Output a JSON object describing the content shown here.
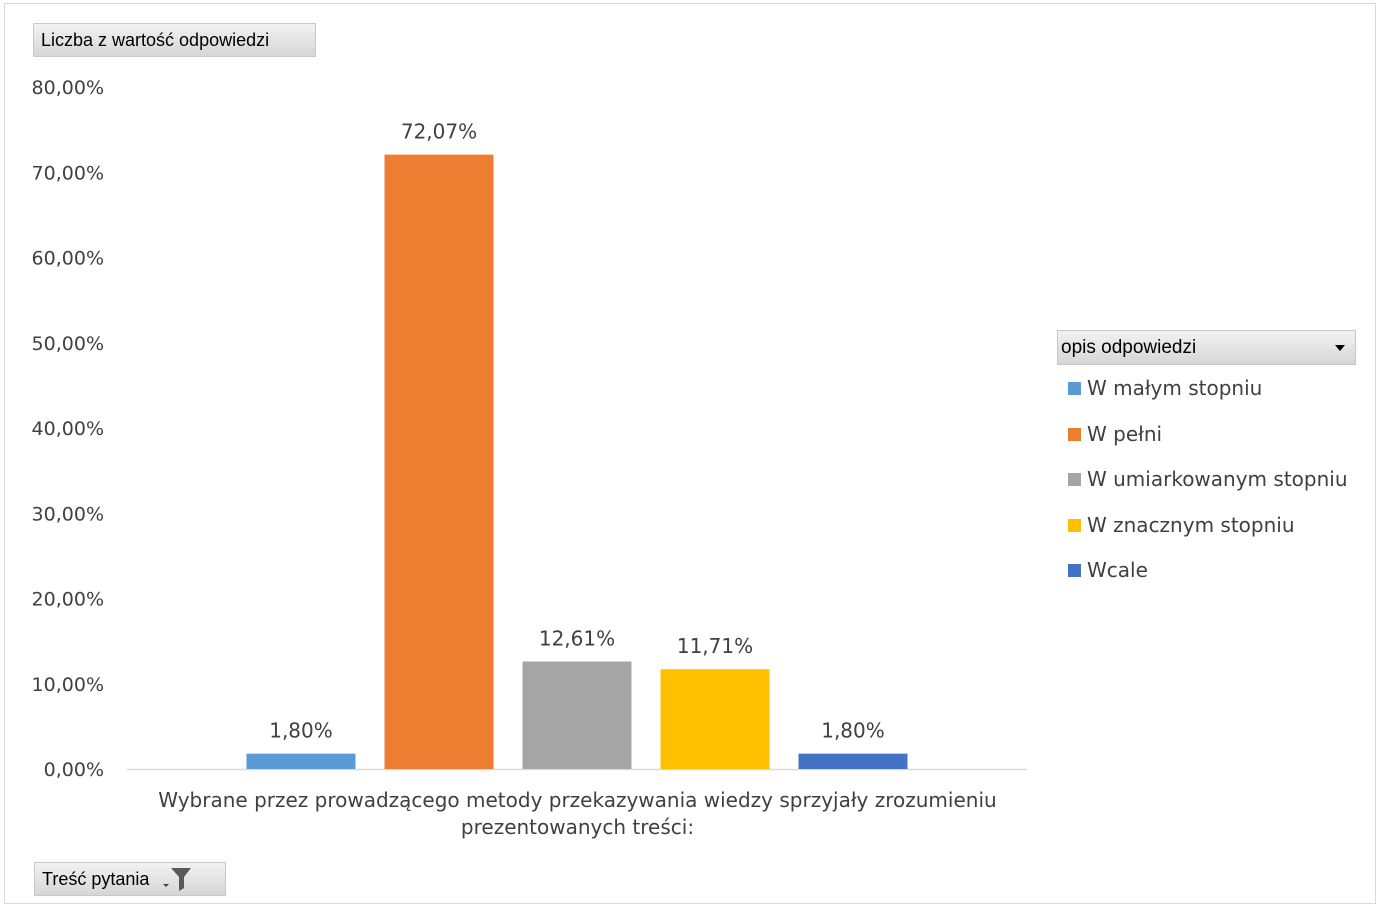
{
  "pivot": {
    "value_field_label": "Liczba z wartość odpowiedzi",
    "category_field_label": "Treść pytania",
    "legend_field_label": "opis odpowiedzi"
  },
  "chart_data": {
    "type": "bar",
    "categories": [
      "Wybrane przez prowadzącego metody przekazywania wiedzy sprzyjały zrozumieniu prezentowanych treści:"
    ],
    "series": [
      {
        "name": "W małym stopniu",
        "values": [
          1.8
        ],
        "label": "1,80%",
        "color": "#5b9bd5"
      },
      {
        "name": "W pełni",
        "values": [
          72.07
        ],
        "label": "72,07%",
        "color": "#ed7d31"
      },
      {
        "name": "W umiarkowanym stopniu",
        "values": [
          12.61
        ],
        "label": "12,61%",
        "color": "#a5a5a5"
      },
      {
        "name": "W znacznym stopniu",
        "values": [
          11.71
        ],
        "label": "11,71%",
        "color": "#ffc000"
      },
      {
        "name": "Wcale",
        "values": [
          1.8
        ],
        "label": "1,80%",
        "color": "#4472c4"
      }
    ],
    "ylim": [
      0,
      80
    ],
    "yticks": [
      0,
      10,
      20,
      30,
      40,
      50,
      60,
      70,
      80
    ],
    "ytick_labels": [
      "0,00%",
      "10,00%",
      "20,00%",
      "30,00%",
      "40,00%",
      "50,00%",
      "60,00%",
      "70,00%",
      "80,00%"
    ],
    "grid": false,
    "legend_position": "right"
  }
}
